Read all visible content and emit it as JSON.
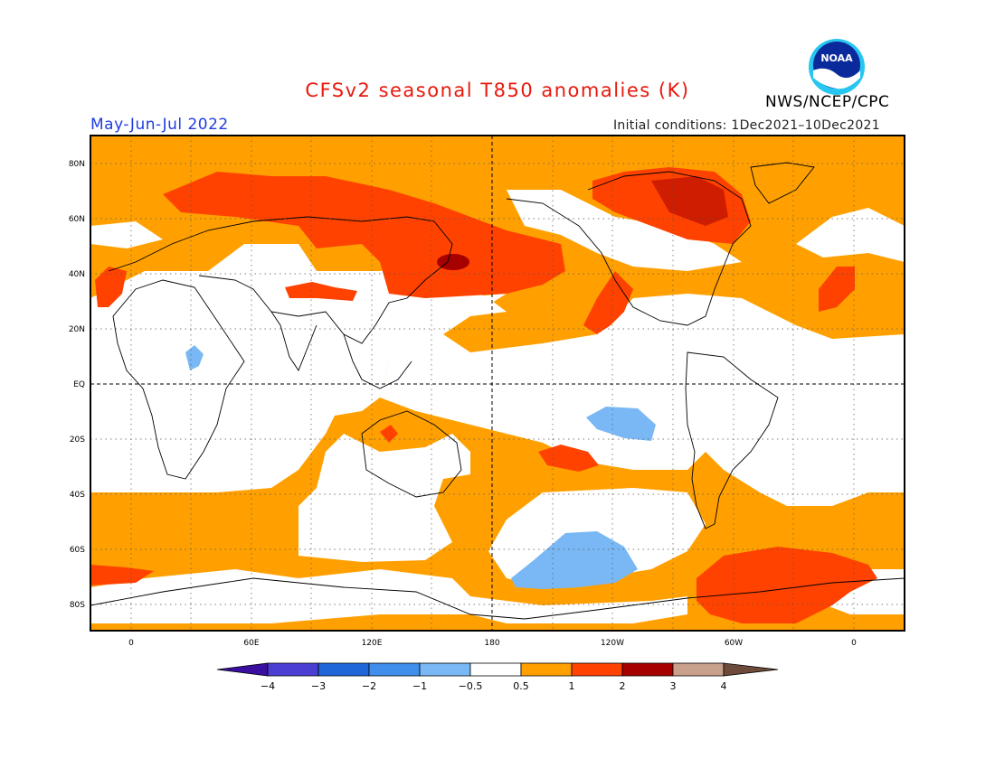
{
  "title": "CFSv2 seasonal T850 anomalies (K)",
  "agency": "NWS/NCEP/CPC",
  "logo_text": "NOAA",
  "period": "May-Jun-Jul 2022",
  "initial_conditions": "Initial conditions: 1Dec2021–10Dec2021",
  "lat_labels": [
    "80N",
    "60N",
    "40N",
    "20N",
    "EQ",
    "20S",
    "40S",
    "60S",
    "80S"
  ],
  "lon_labels": [
    "0",
    "60E",
    "120E",
    "180",
    "120W",
    "60W",
    "0"
  ],
  "colorbar": {
    "labels": [
      "−4",
      "−3",
      "−2",
      "−1",
      "−0.5",
      "0.5",
      "1",
      "2",
      "3",
      "4"
    ],
    "colors": [
      "#3a0fa0",
      "#4a3fd2",
      "#1f66d8",
      "#3f8eec",
      "#79b8f4",
      "#ffffff",
      "#ffa000",
      "#ff4200",
      "#a60000",
      "#c8a08c",
      "#6e4a3a"
    ]
  },
  "colors": {
    "ocean_neutral": "#ffffff",
    "warm_1": "#ffa000",
    "warm_2": "#ff4200",
    "warm_3": "#a60000",
    "cool_1": "#79b8f4",
    "title_red": "#e8180c",
    "period_blue": "#1f3ce0"
  }
}
